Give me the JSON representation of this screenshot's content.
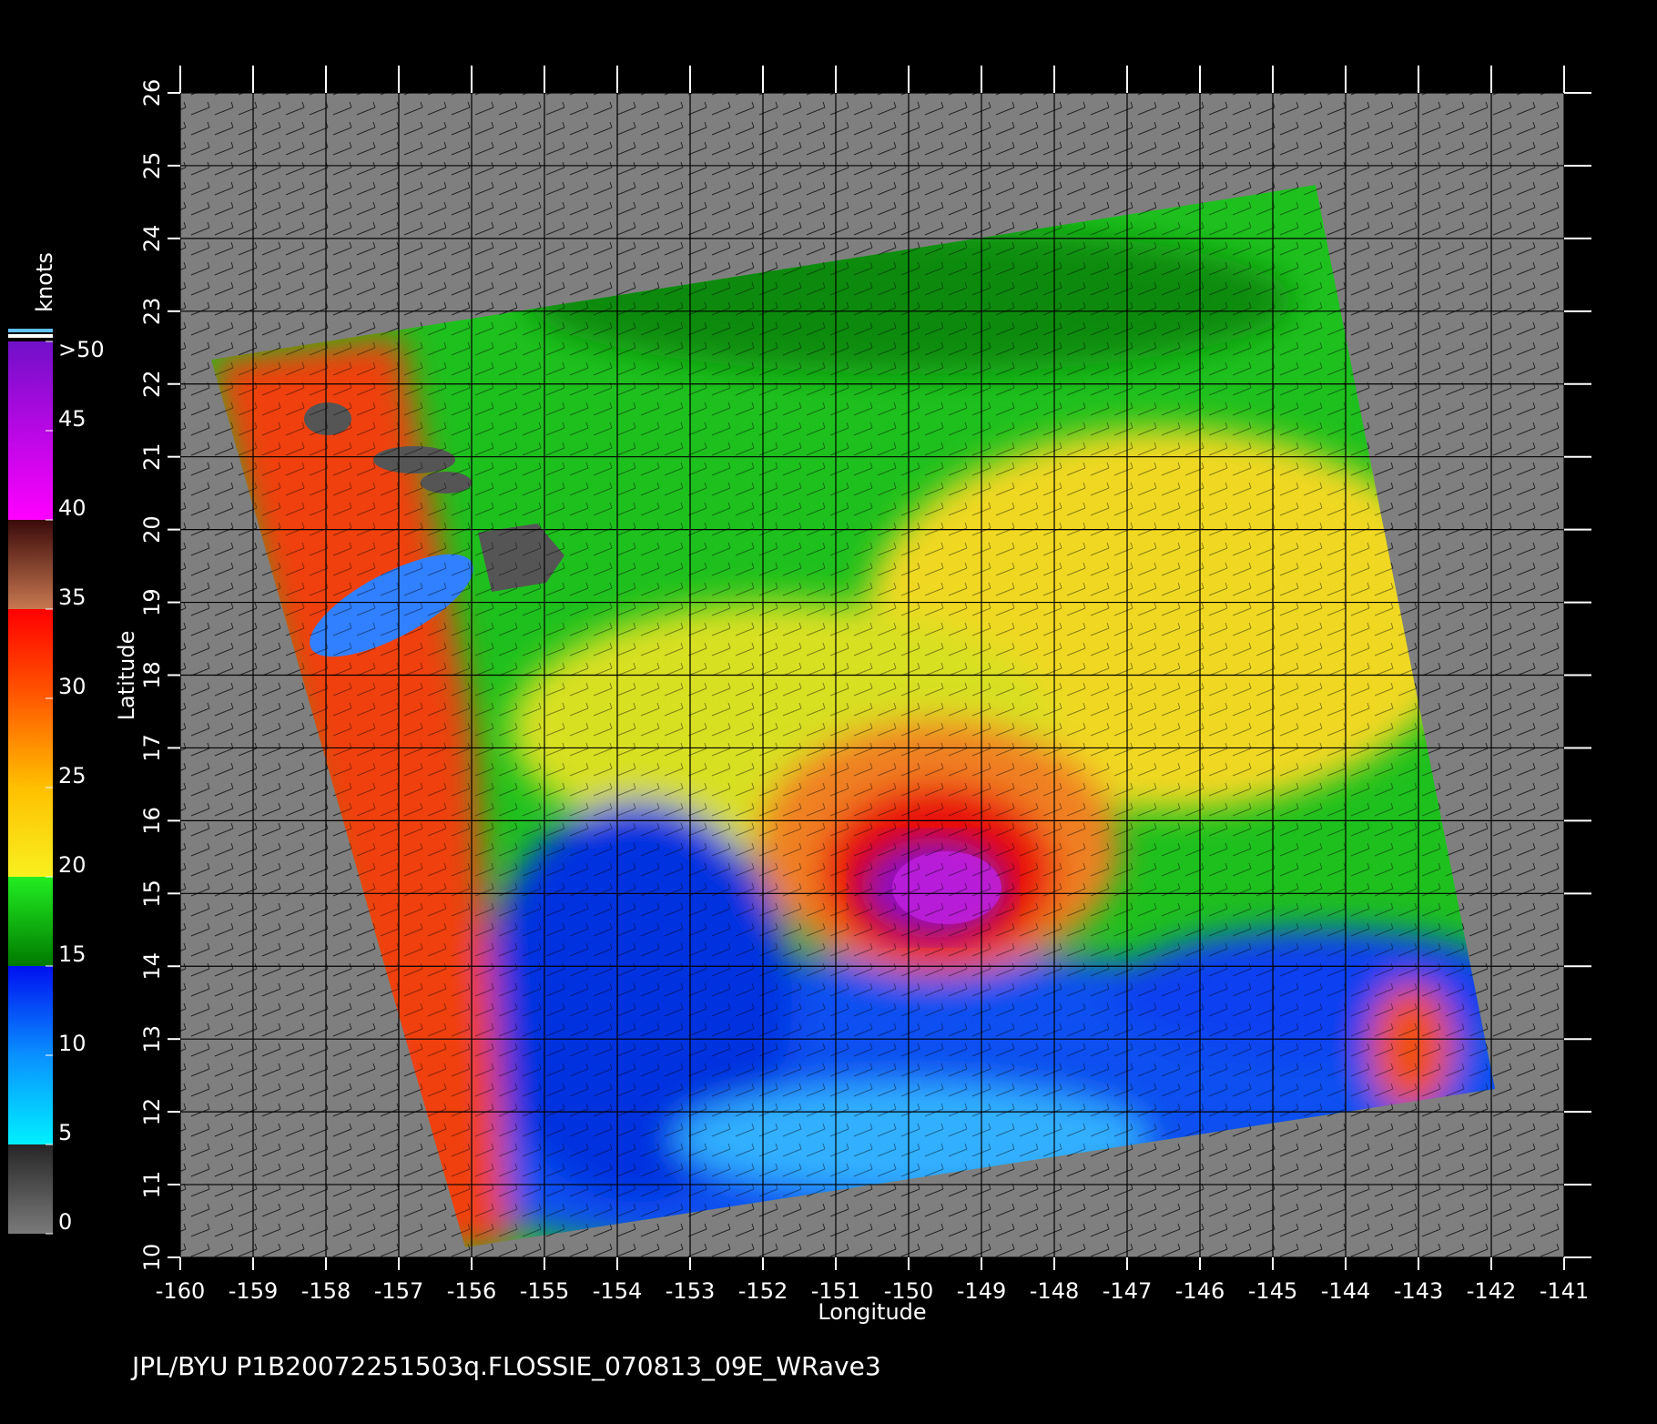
{
  "chart_data": {
    "type": "map",
    "xlabel": "Longitude",
    "ylabel": "Latitude",
    "xlim": [
      -160,
      -141
    ],
    "ylim": [
      10,
      26
    ],
    "xticks": [
      -160,
      -159,
      -158,
      -157,
      -156,
      -155,
      -154,
      -153,
      -152,
      -151,
      -150,
      -149,
      -148,
      -147,
      -146,
      -145,
      -144,
      -143,
      -142,
      -141
    ],
    "yticks": [
      10,
      11,
      12,
      13,
      14,
      15,
      16,
      17,
      18,
      19,
      20,
      21,
      22,
      23,
      24,
      25,
      26
    ],
    "grid": true,
    "colorbar": {
      "label": "knots",
      "lim": [
        0,
        50
      ],
      "ticks": [
        0,
        5,
        10,
        15,
        20,
        25,
        30,
        35,
        40,
        45,
        {
          "value": 50,
          "label": ">50"
        }
      ]
    },
    "footer": "JPL/BYU  P1B20072251503q.FLOSSIE_070813_09E_WRave3"
  }
}
